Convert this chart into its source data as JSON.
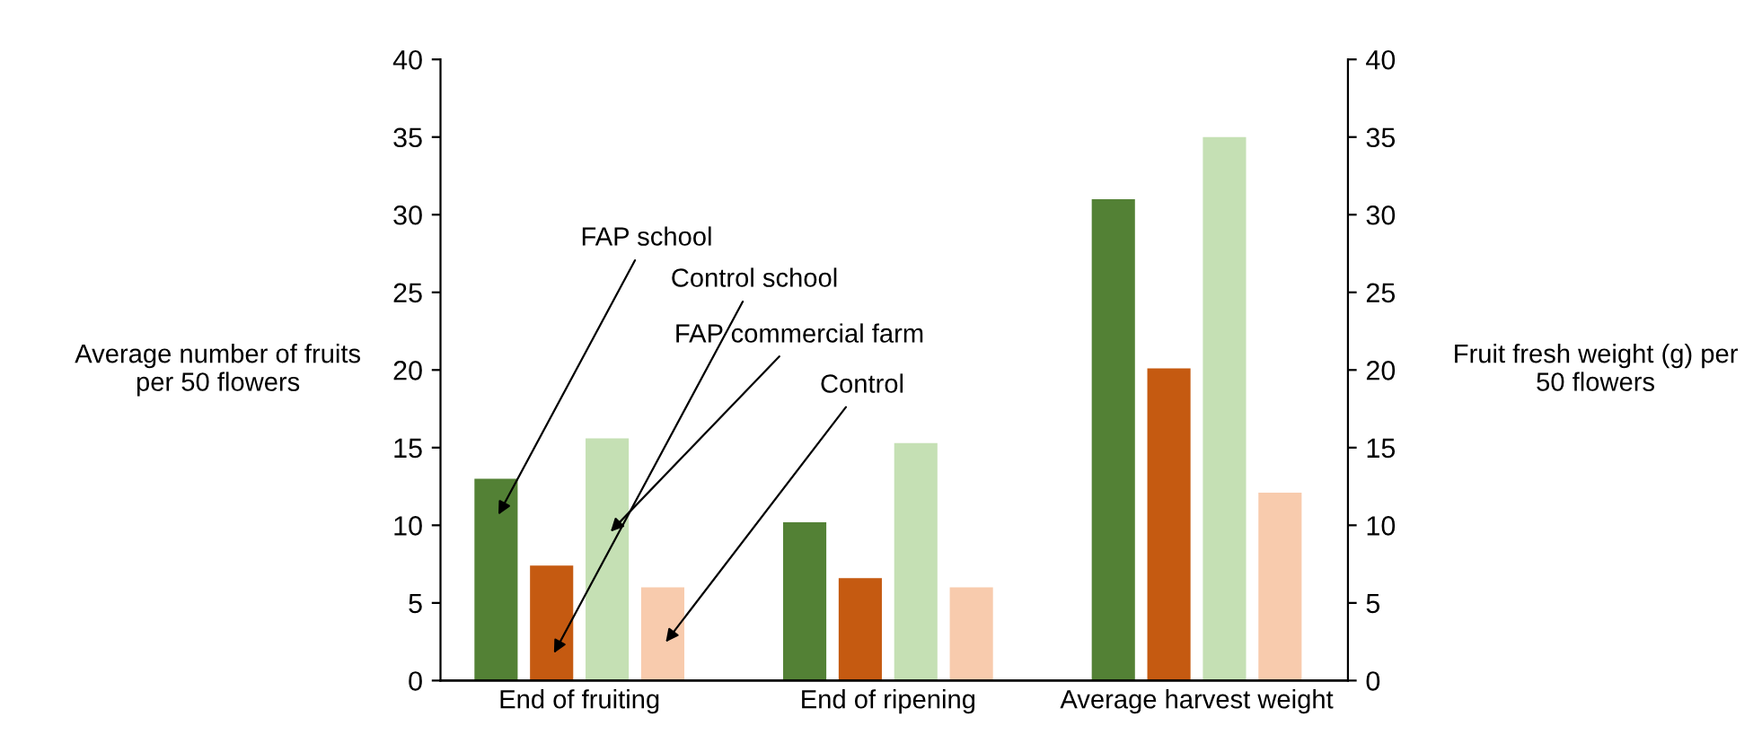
{
  "chart_data": {
    "type": "bar",
    "categories": [
      "End of fruiting",
      "End of ripening",
      "Average harvest weight"
    ],
    "series": [
      {
        "name": "FAP school",
        "color": "#538135",
        "values": [
          13.0,
          10.2,
          31.0
        ]
      },
      {
        "name": "Control school",
        "color": "#c55a11",
        "values": [
          7.4,
          6.6,
          20.1
        ]
      },
      {
        "name": "FAP commercial farm",
        "color": "#c5e0b4",
        "values": [
          15.6,
          15.3,
          35.0
        ]
      },
      {
        "name": "Control",
        "color": "#f8cbad",
        "values": [
          6.0,
          6.0,
          12.1
        ]
      }
    ],
    "ylabel": "Average number of fruits\nper 50 flowers",
    "y2label": "Fruit fresh weight (g) per\n50 flowers",
    "ylim": [
      0,
      40
    ],
    "yticks": [
      0,
      5,
      10,
      15,
      20,
      25,
      30,
      35,
      40
    ],
    "y2lim": [
      0,
      40
    ],
    "y2ticks": [
      0,
      5,
      10,
      15,
      20,
      25,
      30,
      35,
      40
    ],
    "grid": false,
    "legend": false
  }
}
